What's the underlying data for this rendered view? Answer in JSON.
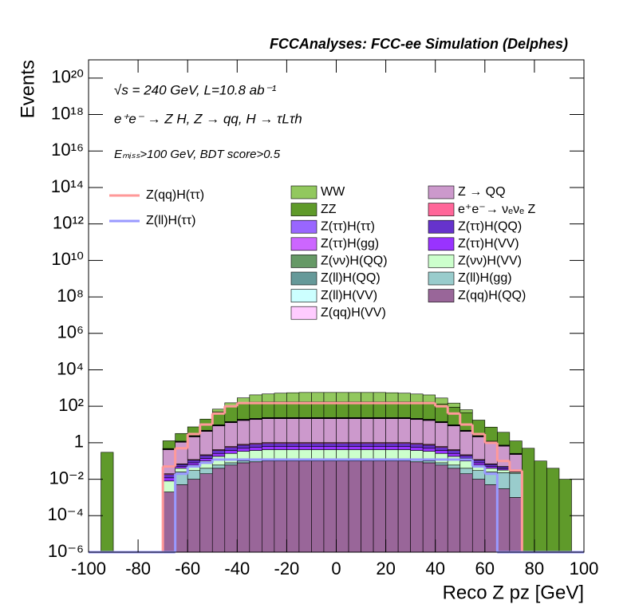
{
  "chart_data": {
    "type": "stacked_histogram",
    "title": "FCCAnalyses: FCC-ee Simulation (Delphes)",
    "annotations": [
      "√s = 240 GeV, L=10.8 ab⁻¹",
      "e⁺e⁻ → Z H, Z → qq, H → τLτh",
      "Eₘᵢₛₛ>100 GeV, BDT score>0.5"
    ],
    "x_label": "Reco Z pz [GeV]",
    "y_label": "Events",
    "log_y": true,
    "bins": [
      -100,
      -95,
      -90,
      -85,
      -80,
      -75,
      -70,
      -65,
      -60,
      -55,
      -50,
      -45,
      -40,
      -35,
      -30,
      -25,
      -20,
      -15,
      -10,
      -5,
      0,
      5,
      10,
      15,
      20,
      25,
      30,
      35,
      40,
      45,
      50,
      55,
      60,
      65,
      70,
      75,
      80,
      85,
      90,
      95,
      100
    ],
    "xlim": [
      -100,
      100
    ],
    "xticks": [
      -100,
      -80,
      -60,
      -40,
      -20,
      0,
      20,
      40,
      60,
      80,
      100
    ],
    "ylim": [
      1e-06,
      1e+21
    ],
    "yticks": [
      {
        "value": 1e-06,
        "label": "10⁻⁶"
      },
      {
        "value": 0.0001,
        "label": "10⁻⁴"
      },
      {
        "value": 0.01,
        "label": "10⁻²"
      },
      1,
      {
        "value": 100,
        "label": "10²"
      },
      {
        "value": 10000.0,
        "label": "10⁴"
      },
      {
        "value": 1000000.0,
        "label": "10⁶"
      },
      {
        "value": 100000000.0,
        "label": "10⁸"
      },
      {
        "value": 10000000000.0,
        "label": "10¹⁰"
      },
      {
        "value": 1000000000000.0,
        "label": "10¹²"
      },
      {
        "value": 100000000000000.0,
        "label": "10¹⁴"
      },
      {
        "value": 1e+16,
        "label": "10¹⁶"
      },
      {
        "value": 1e+18,
        "label": "10¹⁸"
      },
      {
        "value": 1e+20,
        "label": "10²⁰"
      }
    ],
    "series": [
      {
        "name": "WW",
        "color": "#92c85e",
        "values": [
          0,
          0,
          0,
          0,
          0,
          0,
          0,
          0,
          0,
          0,
          20,
          60,
          150,
          250,
          300,
          350,
          380,
          400,
          400,
          400,
          400,
          400,
          400,
          400,
          380,
          350,
          300,
          250,
          150,
          60,
          20,
          0,
          0,
          0,
          0,
          0,
          0,
          0,
          0,
          0
        ]
      },
      {
        "name": "ZZ",
        "color": "#5f9a2a",
        "values": [
          0,
          0.3,
          0,
          0,
          0,
          0,
          0.8,
          2,
          5,
          15,
          40,
          80,
          120,
          150,
          150,
          150,
          150,
          150,
          150,
          150,
          150,
          150,
          150,
          150,
          150,
          150,
          150,
          150,
          120,
          80,
          40,
          15,
          6,
          3,
          1,
          0.5,
          0.1,
          0.04,
          0.01,
          0
        ]
      },
      {
        "name": "Z(ττ)H(ττ)",
        "color": "#9966ff",
        "values": [
          0,
          0,
          0,
          0,
          0,
          0,
          0.01,
          0.025,
          0.05,
          0.1,
          0.2,
          0.3,
          0.4,
          0.45,
          0.5,
          0.5,
          0.5,
          0.5,
          0.5,
          0.5,
          0.5,
          0.5,
          0.5,
          0.5,
          0.5,
          0.5,
          0.45,
          0.4,
          0.3,
          0.2,
          0.1,
          0.05,
          0.025,
          0.015,
          0.005,
          0,
          0,
          0,
          0,
          0
        ]
      },
      {
        "name": "Z(ττ)H(gg)",
        "color": "#cc66ff",
        "values": [
          0,
          0,
          0,
          0,
          0,
          0,
          0.006,
          0.015,
          0.03,
          0.06,
          0.12,
          0.18,
          0.24,
          0.27,
          0.3,
          0.3,
          0.3,
          0.3,
          0.3,
          0.3,
          0.3,
          0.3,
          0.3,
          0.3,
          0.3,
          0.3,
          0.27,
          0.24,
          0.18,
          0.12,
          0.06,
          0.03,
          0.015,
          0.009,
          0.003,
          0,
          0,
          0,
          0,
          0
        ]
      },
      {
        "name": "Z(νν)H(QQ)",
        "color": "#669966",
        "values": [
          0,
          0,
          0,
          0,
          0,
          0,
          0.02,
          0.05,
          0.1,
          0.2,
          0.4,
          0.6,
          0.8,
          0.9,
          1,
          1,
          1,
          1,
          1,
          1,
          1,
          1,
          1,
          1,
          1,
          1,
          0.9,
          0.8,
          0.6,
          0.4,
          0.2,
          0.1,
          0.05,
          0.03,
          0.01,
          0,
          0,
          0,
          0,
          0
        ]
      },
      {
        "name": "Z(ll)H(QQ)",
        "color": "#669999",
        "values": [
          0,
          0,
          0,
          0,
          0,
          0,
          0.01,
          0.025,
          0.05,
          0.1,
          0.2,
          0.3,
          0.4,
          0.45,
          0.5,
          0.5,
          0.5,
          0.5,
          0.5,
          0.5,
          0.5,
          0.5,
          0.5,
          0.5,
          0.5,
          0.5,
          0.45,
          0.4,
          0.3,
          0.2,
          0.1,
          0.05,
          0.025,
          0.015,
          0.005,
          0,
          0,
          0,
          0,
          0
        ]
      },
      {
        "name": "Z(ll)H(VV)",
        "color": "#ccffff",
        "values": [
          0,
          0,
          0,
          0,
          0,
          0,
          0.006,
          0.015,
          0.03,
          0.06,
          0.12,
          0.18,
          0.24,
          0.27,
          0.3,
          0.3,
          0.3,
          0.3,
          0.3,
          0.3,
          0.3,
          0.3,
          0.3,
          0.3,
          0.3,
          0.3,
          0.27,
          0.24,
          0.18,
          0.12,
          0.06,
          0.03,
          0.015,
          0.009,
          0.003,
          0,
          0,
          0,
          0,
          0
        ]
      },
      {
        "name": "Z(qq)H(VV)",
        "color": "#ffccff",
        "values": [
          0,
          0,
          0,
          0,
          0,
          0,
          0.01,
          0.025,
          0.05,
          0.1,
          0.2,
          0.3,
          0.4,
          0.45,
          0.5,
          0.5,
          0.5,
          0.5,
          0.5,
          0.5,
          0.5,
          0.5,
          0.5,
          0.5,
          0.5,
          0.5,
          0.45,
          0.4,
          0.3,
          0.2,
          0.1,
          0.05,
          0.025,
          0.015,
          0.005,
          0,
          0,
          0,
          0,
          0
        ]
      },
      {
        "name": "Z → QQ",
        "color": "#cc99cc",
        "values": [
          0,
          0,
          0,
          0,
          0,
          0,
          0.4,
          1,
          2,
          4,
          8,
          12,
          16,
          18,
          20,
          20,
          20,
          20,
          20,
          20,
          20,
          20,
          20,
          20,
          20,
          20,
          18,
          16,
          12,
          8,
          4,
          2,
          1,
          0.6,
          0.2,
          0,
          0,
          0,
          0,
          0
        ]
      },
      {
        "name": "e⁺e⁻→ νₑνₑ Z",
        "color": "#ff6699",
        "values": [
          0,
          0,
          0,
          0,
          0,
          0,
          0.002,
          0.005,
          0.01,
          0.02,
          0.04,
          0.06,
          0.08,
          0.09,
          0.1,
          0.1,
          0.1,
          0.1,
          0.1,
          0.1,
          0.1,
          0.1,
          0.1,
          0.1,
          0.1,
          0.1,
          0.09,
          0.08,
          0.06,
          0.04,
          0.02,
          0.01,
          0.005,
          0.003,
          0.001,
          0,
          0,
          0,
          0,
          0
        ]
      },
      {
        "name": "Z(ττ)H(QQ)",
        "color": "#6633cc",
        "values": [
          0,
          0,
          0,
          0,
          0,
          0,
          0.006,
          0.015,
          0.03,
          0.06,
          0.12,
          0.18,
          0.24,
          0.27,
          0.3,
          0.3,
          0.3,
          0.3,
          0.3,
          0.3,
          0.3,
          0.3,
          0.3,
          0.3,
          0.3,
          0.3,
          0.27,
          0.24,
          0.18,
          0.12,
          0.06,
          0.03,
          0.015,
          0.009,
          0.003,
          0,
          0,
          0,
          0,
          0
        ]
      },
      {
        "name": "Z(ττ)H(VV)",
        "color": "#9933ff",
        "values": [
          0,
          0,
          0,
          0,
          0,
          0,
          0.004,
          0.01,
          0.02,
          0.04,
          0.08,
          0.12,
          0.16,
          0.18,
          0.2,
          0.2,
          0.2,
          0.2,
          0.2,
          0.2,
          0.2,
          0.2,
          0.2,
          0.2,
          0.2,
          0.2,
          0.18,
          0.16,
          0.12,
          0.08,
          0.04,
          0.02,
          0.01,
          0.006,
          0.002,
          0,
          0,
          0,
          0,
          0
        ]
      },
      {
        "name": "Z(νν)H(VV)",
        "color": "#ccffcc",
        "values": [
          0,
          0,
          0,
          0,
          0,
          0,
          0.006,
          0.015,
          0.03,
          0.06,
          0.12,
          0.18,
          0.24,
          0.27,
          0.3,
          0.3,
          0.3,
          0.3,
          0.3,
          0.3,
          0.3,
          0.3,
          0.3,
          0.3,
          0.3,
          0.3,
          0.27,
          0.24,
          0.18,
          0.12,
          0.06,
          0.03,
          0.015,
          0.009,
          0.003,
          0,
          0,
          0,
          0,
          0
        ]
      },
      {
        "name": "Z(ll)H(gg)",
        "color": "#99cccc",
        "values": [
          0,
          0,
          0,
          0,
          0,
          0,
          0,
          0.02,
          0.02,
          0.02,
          0.02,
          0.02,
          0.02,
          0.02,
          0.02,
          0.02,
          0.02,
          0.02,
          0.02,
          0.02,
          0.02,
          0.02,
          0.02,
          0.02,
          0.02,
          0.02,
          0.02,
          0.02,
          0.02,
          0.02,
          0.02,
          0.02,
          0.02,
          0.02,
          0.02,
          0,
          0,
          0,
          0,
          0
        ]
      },
      {
        "name": "Z(qq)H(QQ)",
        "color": "#996699",
        "values": [
          0,
          0,
          0,
          0,
          0,
          0,
          0.002,
          0.005,
          0.01,
          0.02,
          0.04,
          0.06,
          0.08,
          0.09,
          0.1,
          0.1,
          0.1,
          0.1,
          0.1,
          0.1,
          0.1,
          0.1,
          0.1,
          0.1,
          0.1,
          0.1,
          0.09,
          0.08,
          0.06,
          0.04,
          0.02,
          0.01,
          0.005,
          0.003,
          0.001,
          0,
          0,
          0,
          0,
          0
        ]
      }
    ],
    "overlays": [
      {
        "name": "Z(qq)H(ττ)",
        "color": "#ff9999",
        "values": [
          0,
          0,
          0,
          0,
          0,
          0,
          0.05,
          0.5,
          3,
          10,
          40,
          100,
          150,
          150,
          150,
          150,
          150,
          150,
          150,
          150,
          150,
          150,
          150,
          150,
          150,
          150,
          150,
          150,
          100,
          40,
          10,
          3,
          1,
          0.1,
          0.03,
          0,
          0,
          0,
          0,
          0
        ]
      },
      {
        "name": "Z(ll)H(ττ)",
        "color": "#9999ff",
        "values": [
          0,
          0,
          0,
          0,
          0,
          0,
          0,
          0.02,
          0.05,
          0.08,
          0.12,
          0.12,
          0.12,
          0.12,
          0.12,
          0.12,
          0.12,
          0.12,
          0.12,
          0.12,
          0.12,
          0.12,
          0.12,
          0.12,
          0.12,
          0.12,
          0.12,
          0.12,
          0.12,
          0.12,
          0.12,
          0.05,
          0.02,
          0,
          0,
          0,
          0,
          0,
          0,
          0
        ]
      }
    ]
  }
}
